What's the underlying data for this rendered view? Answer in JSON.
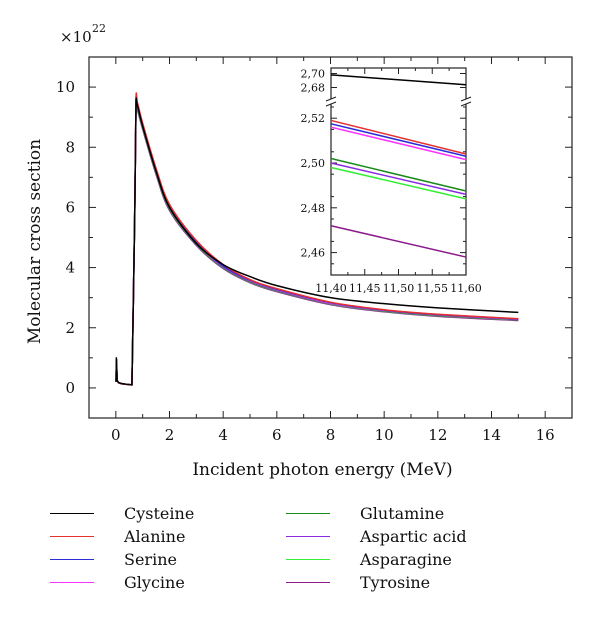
{
  "chart_data": [
    {
      "id": "main",
      "type": "line",
      "title": "",
      "xlabel": "Incident photon energy (MeV)",
      "ylabel": "Molecular cross section",
      "y_multiplier": "×10",
      "y_exponent": "22",
      "xlim": [
        -1,
        17
      ],
      "ylim": [
        -1,
        11
      ],
      "x_ticks": [
        0,
        2,
        4,
        6,
        8,
        10,
        12,
        14,
        16
      ],
      "x_tick_labels": [
        "0",
        "2",
        "4",
        "6",
        "8",
        "10",
        "12",
        "14",
        "16"
      ],
      "y_ticks": [
        0,
        2,
        4,
        6,
        8,
        10
      ],
      "y_tick_labels": [
        "0",
        "2",
        "4",
        "6",
        "8",
        "10"
      ],
      "grid": false,
      "legend_position": "below",
      "series": [
        {
          "name": "Cysteine",
          "color": "#000000",
          "x": [
            0.01,
            0.02,
            0.05,
            0.1,
            0.2,
            0.4,
            0.6,
            0.7,
            0.75,
            0.8,
            1.0,
            1.5,
            2,
            3,
            4,
            5,
            6,
            8,
            10,
            12,
            15
          ],
          "y": [
            0.2,
            1.0,
            0.25,
            0.18,
            0.15,
            0.12,
            0.1,
            5.5,
            9.3,
            9.4,
            8.7,
            7.2,
            6.0,
            4.8,
            4.1,
            3.7,
            3.4,
            3.0,
            2.8,
            2.66,
            2.51
          ]
        },
        {
          "name": "Alanine",
          "color": "#e53030",
          "x": [
            0.01,
            0.02,
            0.05,
            0.1,
            0.2,
            0.4,
            0.6,
            0.7,
            0.75,
            0.8,
            1.0,
            1.5,
            2,
            3,
            4,
            5,
            6,
            8,
            10,
            12,
            15
          ],
          "y": [
            0.2,
            0.95,
            0.24,
            0.17,
            0.14,
            0.12,
            0.1,
            5.6,
            9.5,
            9.5,
            8.8,
            7.3,
            6.1,
            4.9,
            4.1,
            3.6,
            3.3,
            2.85,
            2.6,
            2.45,
            2.3
          ]
        },
        {
          "name": "Serine",
          "color": "#2b2bd9",
          "x": [
            0.01,
            0.02,
            0.05,
            0.1,
            0.2,
            0.4,
            0.6,
            0.7,
            0.75,
            0.8,
            1.0,
            1.5,
            2,
            3,
            4,
            5,
            6,
            8,
            10,
            12,
            15
          ],
          "y": [
            0.2,
            0.95,
            0.24,
            0.17,
            0.14,
            0.12,
            0.1,
            5.6,
            9.45,
            9.45,
            8.75,
            7.25,
            6.05,
            4.85,
            4.05,
            3.58,
            3.28,
            2.84,
            2.59,
            2.44,
            2.29
          ]
        },
        {
          "name": "Glycine",
          "color": "#ff33ff",
          "x": [
            0.01,
            0.02,
            0.05,
            0.1,
            0.2,
            0.4,
            0.6,
            0.7,
            0.75,
            0.8,
            1.0,
            1.5,
            2,
            3,
            4,
            5,
            6,
            8,
            10,
            12,
            15
          ],
          "y": [
            0.2,
            0.95,
            0.24,
            0.17,
            0.14,
            0.12,
            0.1,
            5.6,
            9.4,
            9.4,
            8.72,
            7.22,
            6.02,
            4.82,
            4.03,
            3.56,
            3.26,
            2.82,
            2.58,
            2.43,
            2.28
          ]
        },
        {
          "name": "Glutamine",
          "color": "#1a8a1a",
          "x": [
            0.01,
            0.02,
            0.05,
            0.1,
            0.2,
            0.4,
            0.6,
            0.7,
            0.75,
            0.8,
            1.0,
            1.5,
            2,
            3,
            4,
            5,
            6,
            8,
            10,
            12,
            15
          ],
          "y": [
            0.2,
            0.95,
            0.24,
            0.17,
            0.14,
            0.12,
            0.1,
            5.55,
            9.35,
            9.35,
            8.68,
            7.18,
            5.98,
            4.79,
            4.01,
            3.54,
            3.24,
            2.81,
            2.57,
            2.42,
            2.27
          ]
        },
        {
          "name": "Aspartic acid",
          "color": "#8a2be2",
          "x": [
            0.01,
            0.02,
            0.05,
            0.1,
            0.2,
            0.4,
            0.6,
            0.7,
            0.75,
            0.8,
            1.0,
            1.5,
            2,
            3,
            4,
            5,
            6,
            8,
            10,
            12,
            15
          ],
          "y": [
            0.2,
            0.95,
            0.24,
            0.17,
            0.14,
            0.12,
            0.1,
            5.55,
            9.35,
            9.35,
            8.67,
            7.17,
            5.97,
            4.78,
            4.0,
            3.53,
            3.23,
            2.8,
            2.56,
            2.41,
            2.27
          ]
        },
        {
          "name": "Asparagine",
          "color": "#33ee33",
          "x": [
            0.01,
            0.02,
            0.05,
            0.1,
            0.2,
            0.4,
            0.6,
            0.7,
            0.75,
            0.8,
            1.0,
            1.5,
            2,
            3,
            4,
            5,
            6,
            8,
            10,
            12,
            15
          ],
          "y": [
            0.2,
            0.95,
            0.24,
            0.17,
            0.14,
            0.12,
            0.1,
            5.55,
            9.3,
            9.3,
            8.65,
            7.15,
            5.95,
            4.77,
            3.99,
            3.52,
            3.22,
            2.79,
            2.55,
            2.4,
            2.26
          ]
        },
        {
          "name": "Tyrosine",
          "color": "#8b1a8b",
          "x": [
            0.01,
            0.02,
            0.05,
            0.1,
            0.2,
            0.4,
            0.6,
            0.7,
            0.75,
            0.8,
            1.0,
            1.5,
            2,
            3,
            4,
            5,
            6,
            8,
            10,
            12,
            15
          ],
          "y": [
            0.2,
            0.95,
            0.24,
            0.17,
            0.14,
            0.12,
            0.1,
            5.5,
            9.25,
            9.25,
            8.6,
            7.1,
            5.9,
            4.74,
            3.97,
            3.5,
            3.2,
            2.77,
            2.53,
            2.38,
            2.24
          ]
        }
      ]
    },
    {
      "id": "inset",
      "type": "line",
      "title": "",
      "xlabel": "",
      "ylabel": "",
      "xlim": [
        11.4,
        11.6
      ],
      "x_ticks": [
        11.4,
        11.45,
        11.5,
        11.55,
        11.6
      ],
      "x_tick_labels": [
        "11,40",
        "11,45",
        "11,50",
        "11,55",
        "11,60"
      ],
      "y_axis_broken": true,
      "ylim_upper": [
        2.665,
        2.705
      ],
      "ylim_lower": [
        2.45,
        2.525
      ],
      "y_ticks_upper": [
        2.68,
        2.7
      ],
      "y_tick_labels_upper": [
        "2,68",
        "2,70"
      ],
      "y_ticks_lower": [
        2.46,
        2.48,
        2.5,
        2.52
      ],
      "y_tick_labels_lower": [
        "2,46",
        "2,48",
        "2,50",
        "2,52"
      ],
      "series": [
        {
          "name": "Cysteine",
          "color": "#000000",
          "x": [
            11.4,
            11.6
          ],
          "y": [
            2.698,
            2.684
          ]
        },
        {
          "name": "Alanine",
          "color": "#e53030",
          "x": [
            11.4,
            11.6
          ],
          "y": [
            2.519,
            2.504
          ]
        },
        {
          "name": "Serine",
          "color": "#2b2bd9",
          "x": [
            11.4,
            11.6
          ],
          "y": [
            2.5175,
            2.503
          ]
        },
        {
          "name": "Glycine",
          "color": "#ff33ff",
          "x": [
            11.4,
            11.6
          ],
          "y": [
            2.516,
            2.5015
          ]
        },
        {
          "name": "Glutamine",
          "color": "#1a8a1a",
          "x": [
            11.4,
            11.6
          ],
          "y": [
            2.502,
            2.4875
          ]
        },
        {
          "name": "Aspartic acid",
          "color": "#8a2be2",
          "x": [
            11.4,
            11.6
          ],
          "y": [
            2.5,
            2.486
          ]
        },
        {
          "name": "Asparagine",
          "color": "#33ee33",
          "x": [
            11.4,
            11.6
          ],
          "y": [
            2.498,
            2.484
          ]
        },
        {
          "name": "Tyrosine",
          "color": "#8b1a8b",
          "x": [
            11.4,
            11.6
          ],
          "y": [
            2.472,
            2.458
          ]
        }
      ]
    }
  ],
  "legend": {
    "items": [
      {
        "label": "Cysteine",
        "color": "#000000"
      },
      {
        "label": "Alanine",
        "color": "#e53030"
      },
      {
        "label": "Serine",
        "color": "#2b2bd9"
      },
      {
        "label": "Glycine",
        "color": "#ff33ff"
      },
      {
        "label": "Glutamine",
        "color": "#1a8a1a"
      },
      {
        "label": "Aspartic acid",
        "color": "#8a2be2"
      },
      {
        "label": "Asparagine",
        "color": "#33ee33"
      },
      {
        "label": "Tyrosine",
        "color": "#8b1a8b"
      }
    ]
  }
}
